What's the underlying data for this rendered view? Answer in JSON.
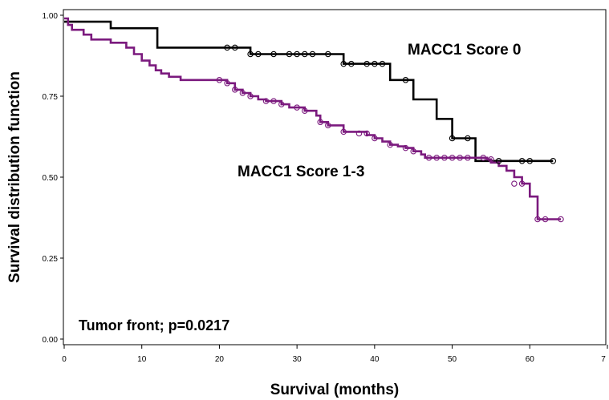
{
  "chart_data": {
    "type": "line",
    "subtype": "kaplan-meier-step",
    "xlabel": "Survival (months)",
    "ylabel": "Survival distribution function",
    "xlim": [
      0,
      70
    ],
    "ylim": [
      0,
      1
    ],
    "x_ticks": [
      "0",
      "10",
      "20",
      "30",
      "40",
      "50",
      "60",
      "7"
    ],
    "y_ticks": [
      "0.00",
      "0.25",
      "0.50",
      "0.75",
      "1.00"
    ],
    "grid": false,
    "annotations": {
      "score0": "MACC1 Score 0",
      "score13": "MACC1 Score 1-3",
      "pvalue": "Tumor front; p=0.0217"
    },
    "series": [
      {
        "name": "MACC1 Score 0",
        "color": "#000000",
        "steps": [
          [
            0,
            0.98
          ],
          [
            6,
            0.96
          ],
          [
            12,
            0.9
          ],
          [
            24,
            0.88
          ],
          [
            36,
            0.85
          ],
          [
            42,
            0.8
          ],
          [
            45,
            0.74
          ],
          [
            48,
            0.68
          ],
          [
            50,
            0.62
          ],
          [
            53,
            0.55
          ],
          [
            63,
            0.55
          ]
        ],
        "censored": [
          [
            21,
            0.9
          ],
          [
            22,
            0.9
          ],
          [
            24,
            0.88
          ],
          [
            25,
            0.88
          ],
          [
            27,
            0.88
          ],
          [
            29,
            0.88
          ],
          [
            30,
            0.88
          ],
          [
            31,
            0.88
          ],
          [
            32,
            0.88
          ],
          [
            34,
            0.88
          ],
          [
            36,
            0.85
          ],
          [
            37,
            0.85
          ],
          [
            39,
            0.85
          ],
          [
            40,
            0.85
          ],
          [
            41,
            0.85
          ],
          [
            44,
            0.8
          ],
          [
            50,
            0.62
          ],
          [
            52,
            0.62
          ],
          [
            56,
            0.55
          ],
          [
            59,
            0.55
          ],
          [
            60,
            0.55
          ],
          [
            63,
            0.55
          ]
        ]
      },
      {
        "name": "MACC1 Score 1-3",
        "color": "#7b1a7e",
        "steps": [
          [
            0,
            0.99
          ],
          [
            0.5,
            0.97
          ],
          [
            1,
            0.955
          ],
          [
            2.5,
            0.94
          ],
          [
            3.5,
            0.925
          ],
          [
            6,
            0.915
          ],
          [
            8,
            0.9
          ],
          [
            9,
            0.88
          ],
          [
            10,
            0.86
          ],
          [
            11,
            0.845
          ],
          [
            11.8,
            0.83
          ],
          [
            12.5,
            0.82
          ],
          [
            13.5,
            0.81
          ],
          [
            15,
            0.8
          ],
          [
            21,
            0.79
          ],
          [
            22,
            0.77
          ],
          [
            23,
            0.76
          ],
          [
            24,
            0.75
          ],
          [
            25,
            0.74
          ],
          [
            26,
            0.735
          ],
          [
            28,
            0.725
          ],
          [
            29,
            0.715
          ],
          [
            31,
            0.705
          ],
          [
            32.5,
            0.69
          ],
          [
            33,
            0.67
          ],
          [
            34,
            0.66
          ],
          [
            36,
            0.64
          ],
          [
            39,
            0.63
          ],
          [
            40,
            0.62
          ],
          [
            41,
            0.61
          ],
          [
            42,
            0.6
          ],
          [
            43,
            0.595
          ],
          [
            44,
            0.59
          ],
          [
            45,
            0.58
          ],
          [
            46,
            0.57
          ],
          [
            46.5,
            0.56
          ],
          [
            54.5,
            0.555
          ],
          [
            55,
            0.545
          ],
          [
            56,
            0.535
          ],
          [
            57,
            0.52
          ],
          [
            58,
            0.5
          ],
          [
            59,
            0.48
          ],
          [
            60,
            0.44
          ],
          [
            61,
            0.37
          ],
          [
            64,
            0.37
          ]
        ],
        "censored": [
          [
            20,
            0.8
          ],
          [
            21,
            0.79
          ],
          [
            22,
            0.77
          ],
          [
            23,
            0.76
          ],
          [
            24,
            0.75
          ],
          [
            26,
            0.735
          ],
          [
            27,
            0.735
          ],
          [
            28,
            0.725
          ],
          [
            30,
            0.715
          ],
          [
            31,
            0.705
          ],
          [
            33,
            0.67
          ],
          [
            34,
            0.66
          ],
          [
            36,
            0.64
          ],
          [
            38,
            0.635
          ],
          [
            39,
            0.635
          ],
          [
            40,
            0.62
          ],
          [
            42,
            0.6
          ],
          [
            44,
            0.59
          ],
          [
            45,
            0.58
          ],
          [
            47,
            0.56
          ],
          [
            48,
            0.56
          ],
          [
            49,
            0.56
          ],
          [
            50,
            0.56
          ],
          [
            51,
            0.56
          ],
          [
            52,
            0.56
          ],
          [
            54,
            0.56
          ],
          [
            55,
            0.555
          ],
          [
            58,
            0.48
          ],
          [
            59,
            0.48
          ],
          [
            61,
            0.37
          ],
          [
            62,
            0.37
          ],
          [
            64,
            0.37
          ]
        ]
      }
    ]
  }
}
